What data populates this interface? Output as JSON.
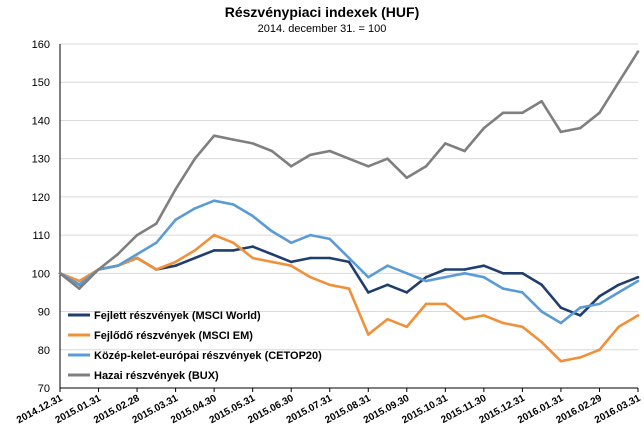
{
  "chart_data": {
    "type": "line",
    "title": "Részvénypiaci indexek (HUF)",
    "subtitle": "2014. december 31. = 100",
    "ylim": [
      70,
      160
    ],
    "yticks": [
      70,
      80,
      90,
      100,
      110,
      120,
      130,
      140,
      150,
      160
    ],
    "grid": true,
    "legend_position": "bottom-left",
    "x_tick_labels": [
      "2014.12.31",
      "2015.01.31",
      "2015.02.28",
      "2015.03.31",
      "2015.04.30",
      "2015.05.31",
      "2015.06.30",
      "2015.07.31",
      "2015.08.31",
      "2015.09.30",
      "2015.10.31",
      "2015.11.30",
      "2015.12.31",
      "2016.01.31",
      "2016.02.29",
      "2016.03.31"
    ],
    "x": [
      "2014.12.31",
      "2015.01.15",
      "2015.01.31",
      "2015.02.14",
      "2015.02.28",
      "2015.03.15",
      "2015.03.31",
      "2015.04.15",
      "2015.04.30",
      "2015.05.15",
      "2015.05.31",
      "2015.06.15",
      "2015.06.30",
      "2015.07.15",
      "2015.07.31",
      "2015.08.15",
      "2015.08.31",
      "2015.09.15",
      "2015.09.30",
      "2015.10.15",
      "2015.10.31",
      "2015.11.15",
      "2015.11.30",
      "2015.12.15",
      "2015.12.31",
      "2016.01.15",
      "2016.01.31",
      "2016.02.14",
      "2016.02.29",
      "2016.03.15",
      "2016.03.31"
    ],
    "series": [
      {
        "name": "Fejlett részvények (MSCI World)",
        "color": "#1f3e6e",
        "values": [
          100,
          97,
          101,
          102,
          104,
          101,
          102,
          104,
          106,
          106,
          107,
          105,
          103,
          104,
          104,
          103,
          95,
          97,
          95,
          99,
          101,
          101,
          102,
          100,
          100,
          97,
          91,
          89,
          94,
          97,
          99
        ]
      },
      {
        "name": "Fejlődő részvények (MSCI EM)",
        "color": "#f0913a",
        "values": [
          100,
          98,
          101,
          102,
          104,
          101,
          103,
          106,
          110,
          108,
          104,
          103,
          102,
          99,
          97,
          96,
          84,
          88,
          86,
          92,
          92,
          88,
          89,
          87,
          86,
          82,
          77,
          78,
          80,
          86,
          89
        ]
      },
      {
        "name": "Közép-kelet-európai részvények (CETOP20)",
        "color": "#5b9bd5",
        "values": [
          100,
          97,
          101,
          102,
          105,
          108,
          114,
          117,
          119,
          118,
          115,
          111,
          108,
          110,
          109,
          104,
          99,
          102,
          100,
          98,
          99,
          100,
          99,
          96,
          95,
          90,
          87,
          91,
          92,
          95,
          98
        ]
      },
      {
        "name": "Hazai részvények (BUX)",
        "color": "#7f7f7f",
        "values": [
          100,
          96,
          101,
          105,
          110,
          113,
          122,
          130,
          136,
          135,
          134,
          132,
          128,
          131,
          132,
          130,
          128,
          130,
          125,
          128,
          134,
          132,
          138,
          142,
          142,
          145,
          137,
          138,
          142,
          150,
          158
        ]
      }
    ]
  }
}
